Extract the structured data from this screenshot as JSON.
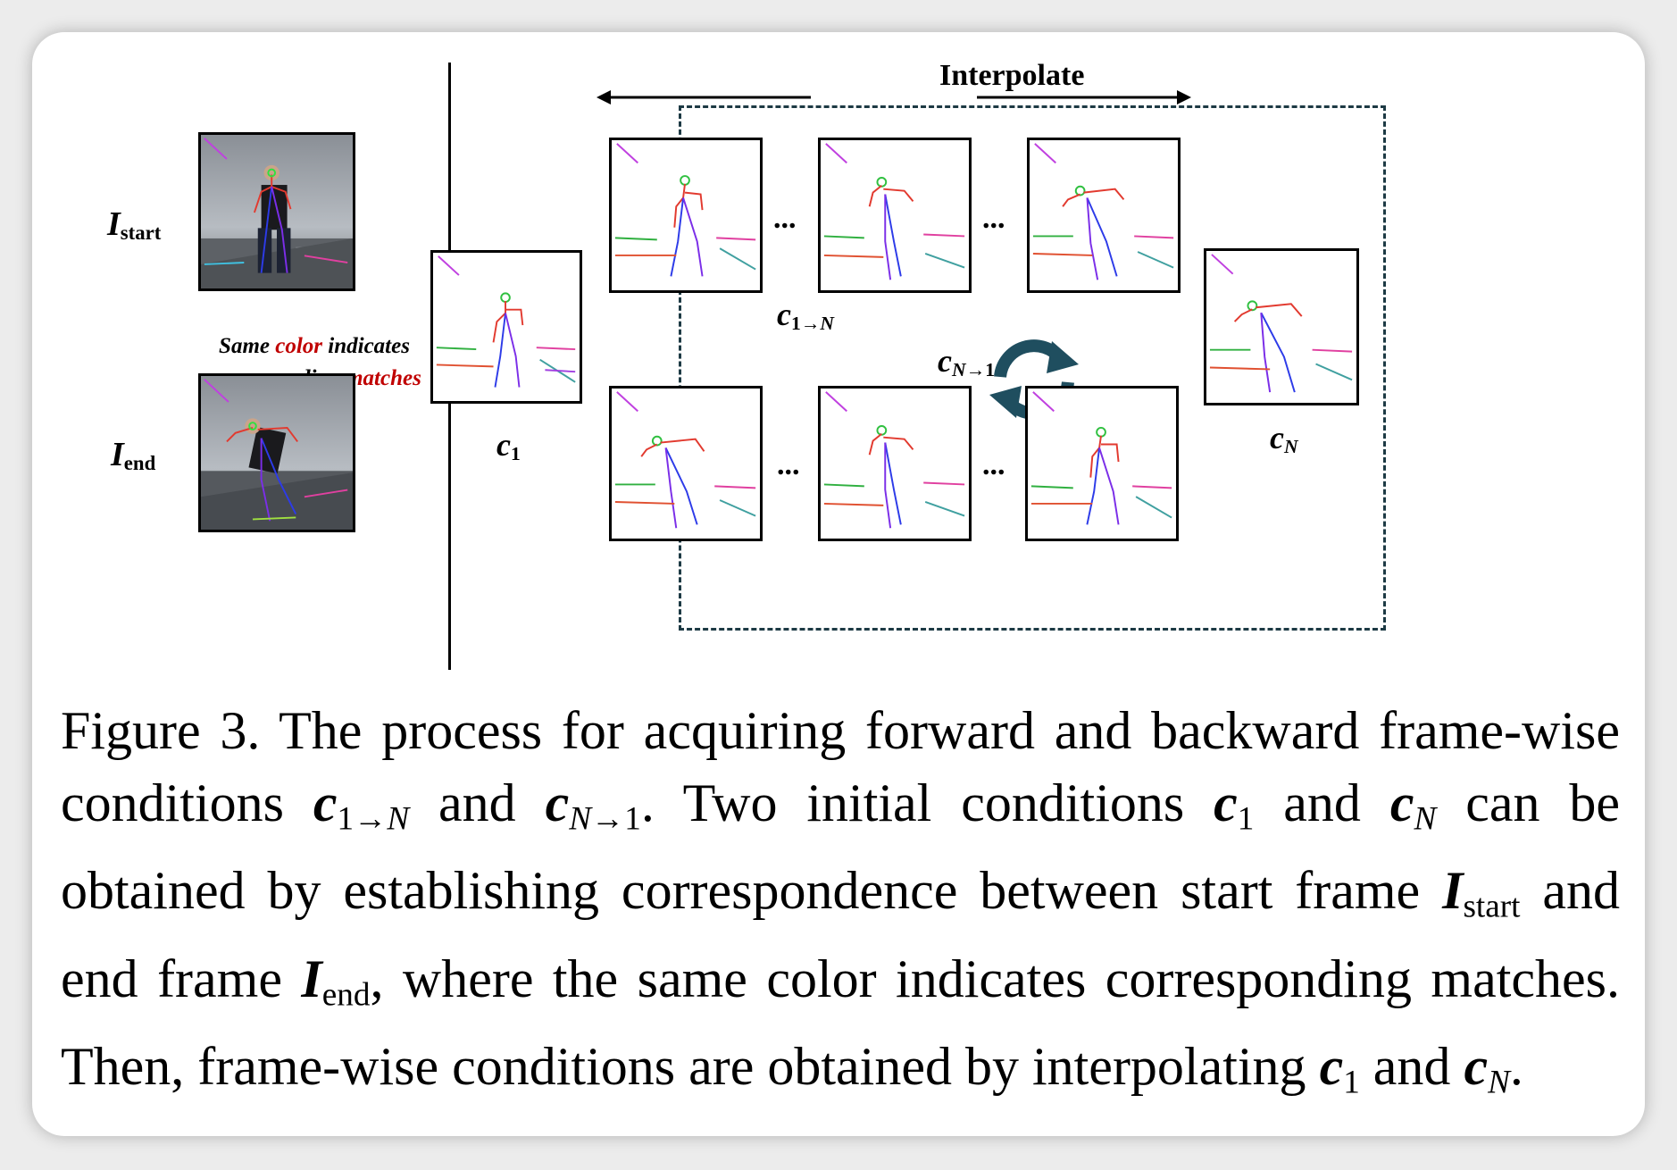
{
  "figure": {
    "labels": {
      "i_start": {
        "symbol": "I",
        "sub": "start"
      },
      "i_end": {
        "symbol": "I",
        "sub": "end"
      },
      "c1": {
        "symbol": "c",
        "sub": "1"
      },
      "cN": {
        "symbol": "c",
        "sub": "N"
      },
      "c1toN": {
        "symbol": "c",
        "sub_num": "1",
        "sub_arrow": "→",
        "sub_var": "N"
      },
      "cNto1": {
        "symbol": "c",
        "sub_var": "N",
        "sub_arrow": "→",
        "sub_num": "1"
      }
    },
    "note": {
      "line1_a": "Same ",
      "line1_color": "color",
      "line1_b": " indicates",
      "line2_a": "corresponding ",
      "line2_matches": "matches"
    },
    "interpolate": "Interpolate",
    "ellipsis": "...",
    "colors": {
      "accent_red": "#c00000",
      "dash_border": "#1d3a44",
      "cycle_icon": "#1f4e5f"
    },
    "icons": [
      "cycle-arrows-icon",
      "double-arrow-icon"
    ]
  },
  "caption": {
    "p1": "Figure 3. The process for acquiring forward and backward frame-wise conditions ",
    "c": "c",
    "s1": "1→",
    "sN": "N",
    "and1": " and ",
    "sN2": "N",
    "s1b": "→1",
    "p2": ". Two initial conditions ",
    "sub1": "1",
    "and2": " and ",
    "p3": " can be obtained by establishing correspondence between start frame ",
    "I": "I",
    "start": "start",
    "p4": " and end frame ",
    "end": "end",
    "p5": ", where the same color indicates corresponding matches. Then, frame-wise conditions are obtained by interpolating ",
    "and3": " and ",
    "p6": "."
  }
}
